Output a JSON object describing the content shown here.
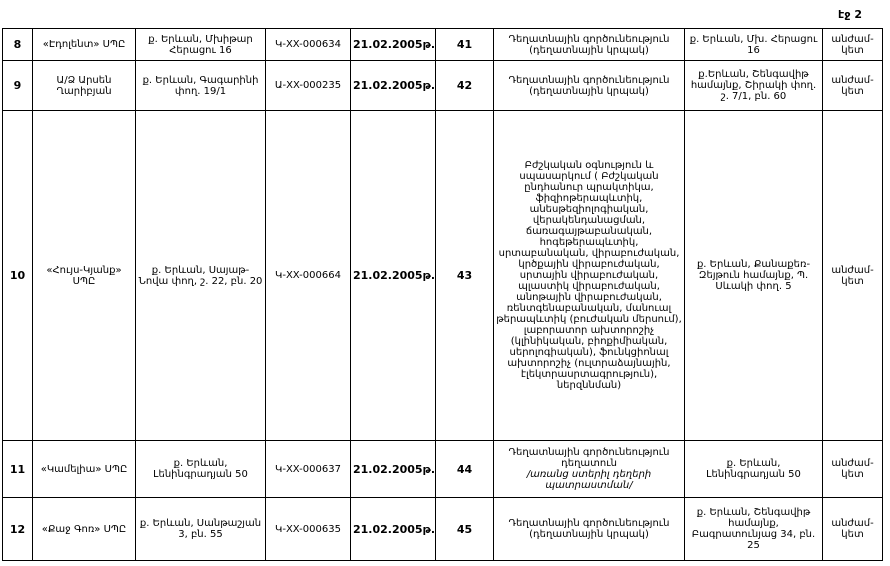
{
  "page_label": "էջ 2",
  "rows": [
    {
      "no": "8",
      "org": "«Էդոլենտ» ՍՊԸ",
      "addr": "ք. Երևան, Մխիթար Հերացու 16",
      "license": "Կ-XX-000634",
      "date": "21.02.2005թ.",
      "num": "41",
      "activity": "Դեղատնային գործունեություն (դեղատնային կրպակ)",
      "activity_note": "",
      "place": "ք. Երևան, Մխ. Հերացու 16",
      "term": "անժամ-կետ"
    },
    {
      "no": "9",
      "org": "Ա/Ձ Արսեն Ղարիբյան",
      "addr": "ք. Երևան, Գագարինի փող. 19/1",
      "license": "Ա-XX-000235",
      "date": "21.02.2005թ.",
      "num": "42",
      "activity": "Դեղատնային գործունեություն (դեղատնային կրպակ)",
      "activity_note": "",
      "place": "ք.Երևան, Շենգավիթ համայնք, Շիրակի փող. շ. 7/1, բն. 60",
      "term": "անժամ-կետ"
    },
    {
      "no": "10",
      "org": "«Հույս-Կյանք» ՍՊԸ",
      "addr": "ք. Երևան, Սայաթ-Նովա փող, շ. 22, բն. 20",
      "license": "Կ-XX-000664",
      "date": "21.02.2005թ.",
      "num": "43",
      "activity": "Բժշկական օգնություն և սպասարկում ( Բժշկական ընդհանուր պրակտիկա, ֆիզիոթերապևտիկ, անեսթեզիոլոգիական, վերակենդանացման, ճառագայթաբանական, հոգեթերապևտիկ, սրտաբանական, վիրաբուժական, կրծքային վիրաբուժական, սրտային վիրաբուժական, պլաստիկ վիրաբուժական, անոթային վիրաբուժական, ռենտգենաբանական, մանուալ թերապևտիկ (բուժական մերսում), լաբորատոր ախտորոշիչ (կլինիկական, բիոքիմիական, սերոլոգիական), ֆունկցիոնալ ախտորոշիչ (ուլտրաձայնային, էլեկտրասրտագրություն), ներզննման)",
      "activity_note": "",
      "place": "ք. Երևան, Քանաքեռ-Զեյթուն համայնք, Պ. Սևակի փող. 5",
      "term": "անժամ-կետ"
    },
    {
      "no": "11",
      "org": "«Կամելիա» ՍՊԸ",
      "addr": "ք. Երևան, Լենինգրադյան 50",
      "license": "Կ-XX-000637",
      "date": "21.02.2005թ.",
      "num": "44",
      "activity": "Դեղատնային գործունեություն դեղատուն",
      "activity_note": "/առանց ստերիլ դեղերի պատրաստման/",
      "place": "ք. Երևան, Լենինգրադյան 50",
      "term": "անժամ-կետ"
    },
    {
      "no": "12",
      "org": "«Քաջ Գոռ» ՍՊԸ",
      "addr": "ք. Երևան, Սանթաշյան 3, բն. 55",
      "license": "Կ-XX-000635",
      "date": "21.02.2005թ.",
      "num": "45",
      "activity": "Դեղատնային գործունեություն (դեղատնային կրպակ)",
      "activity_note": "",
      "place": "ք. Երևան, Շենգավիթ համայնք, Բագրատունյաց 34, բն. 25",
      "term": "անժամ-կետ"
    }
  ]
}
